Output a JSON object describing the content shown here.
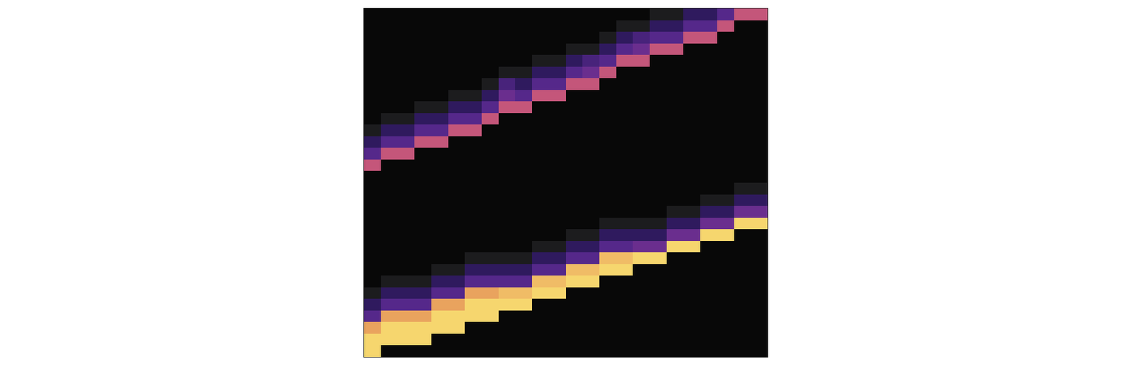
{
  "chart_data": {
    "type": "heatmap",
    "x": [
      0,
      1,
      2,
      3,
      4,
      5,
      6,
      7,
      8,
      9,
      10,
      11,
      12,
      13,
      14,
      15,
      16,
      17,
      18,
      19,
      20,
      21,
      22,
      23
    ],
    "y": [
      0,
      1,
      2,
      3,
      4,
      5,
      6,
      7,
      8,
      9,
      10,
      11,
      12,
      13,
      14,
      15,
      16,
      17,
      18,
      19,
      20,
      21,
      22,
      23,
      24,
      25,
      26,
      27,
      28,
      29
    ],
    "z": [
      [
        0,
        0,
        0,
        0,
        0,
        0,
        0,
        0,
        0,
        0,
        0,
        0,
        0,
        0,
        0,
        0,
        0,
        0.15,
        0.15,
        0.4,
        0.4,
        0.55,
        0.8,
        0.8
      ],
      [
        0,
        0,
        0,
        0,
        0,
        0,
        0,
        0,
        0,
        0,
        0,
        0,
        0,
        0,
        0,
        0.15,
        0.15,
        0.4,
        0.4,
        0.55,
        0.55,
        0.8,
        0,
        0
      ],
      [
        0,
        0,
        0,
        0,
        0,
        0,
        0,
        0,
        0,
        0,
        0,
        0,
        0,
        0,
        0.15,
        0.4,
        0.5,
        0.55,
        0.55,
        0.8,
        0.8,
        0,
        0,
        0
      ],
      [
        0,
        0,
        0,
        0,
        0,
        0,
        0,
        0,
        0,
        0,
        0,
        0,
        0.15,
        0.15,
        0.4,
        0.55,
        0.6,
        0.8,
        0.8,
        0,
        0,
        0,
        0,
        0
      ],
      [
        0,
        0,
        0,
        0,
        0,
        0,
        0,
        0,
        0,
        0,
        0.15,
        0.15,
        0.4,
        0.5,
        0.55,
        0.8,
        0.8,
        0,
        0,
        0,
        0,
        0,
        0,
        0
      ],
      [
        0,
        0,
        0,
        0,
        0,
        0,
        0,
        0,
        0.15,
        0.15,
        0.4,
        0.4,
        0.55,
        0.6,
        0.8,
        0,
        0,
        0,
        0,
        0,
        0,
        0,
        0,
        0
      ],
      [
        0,
        0,
        0,
        0,
        0,
        0,
        0,
        0.15,
        0.5,
        0.4,
        0.55,
        0.55,
        0.8,
        0.8,
        0,
        0,
        0,
        0,
        0,
        0,
        0,
        0,
        0,
        0
      ],
      [
        0,
        0,
        0,
        0,
        0,
        0.15,
        0.15,
        0.4,
        0.6,
        0.55,
        0.8,
        0.8,
        0,
        0,
        0,
        0,
        0,
        0,
        0,
        0,
        0,
        0,
        0,
        0
      ],
      [
        0,
        0,
        0,
        0.15,
        0.15,
        0.4,
        0.4,
        0.55,
        0.8,
        0.8,
        0,
        0,
        0,
        0,
        0,
        0,
        0,
        0,
        0,
        0,
        0,
        0,
        0,
        0
      ],
      [
        0,
        0.15,
        0.15,
        0.4,
        0.4,
        0.55,
        0.55,
        0.8,
        0,
        0,
        0,
        0,
        0,
        0,
        0,
        0,
        0,
        0,
        0,
        0,
        0,
        0,
        0,
        0
      ],
      [
        0.15,
        0.4,
        0.4,
        0.55,
        0.55,
        0.8,
        0.8,
        0,
        0,
        0,
        0,
        0,
        0,
        0,
        0,
        0,
        0,
        0,
        0,
        0,
        0,
        0,
        0,
        0
      ],
      [
        0.4,
        0.55,
        0.55,
        0.8,
        0.8,
        0,
        0,
        0,
        0,
        0,
        0,
        0,
        0,
        0,
        0,
        0,
        0,
        0,
        0,
        0,
        0,
        0,
        0,
        0
      ],
      [
        0.55,
        0.8,
        0.8,
        0,
        0,
        0,
        0,
        0,
        0,
        0,
        0,
        0,
        0,
        0,
        0,
        0,
        0,
        0,
        0,
        0,
        0,
        0,
        0,
        0
      ],
      [
        0.8,
        0,
        0,
        0,
        0,
        0,
        0,
        0,
        0,
        0,
        0,
        0,
        0,
        0,
        0,
        0,
        0,
        0,
        0,
        0,
        0,
        0,
        0,
        0
      ],
      [
        0,
        0,
        0,
        0,
        0,
        0,
        0,
        0,
        0,
        0,
        0,
        0,
        0,
        0,
        0,
        0,
        0,
        0,
        0,
        0,
        0,
        0,
        0,
        0
      ],
      [
        0,
        0,
        0,
        0,
        0,
        0,
        0,
        0,
        0,
        0,
        0,
        0,
        0,
        0,
        0,
        0,
        0,
        0,
        0,
        0,
        0,
        0,
        0.15,
        0.15
      ],
      [
        0,
        0,
        0,
        0,
        0,
        0,
        0,
        0,
        0,
        0,
        0,
        0,
        0,
        0,
        0,
        0,
        0,
        0,
        0,
        0,
        0.15,
        0.15,
        0.4,
        0.4
      ],
      [
        0,
        0,
        0,
        0,
        0,
        0,
        0,
        0,
        0,
        0,
        0,
        0,
        0,
        0,
        0,
        0,
        0,
        0,
        0.15,
        0.15,
        0.4,
        0.4,
        0.6,
        0.6
      ],
      [
        0,
        0,
        0,
        0,
        0,
        0,
        0,
        0,
        0,
        0,
        0,
        0,
        0,
        0,
        0.15,
        0.15,
        0.15,
        0.15,
        0.4,
        0.4,
        0.6,
        0.6,
        1,
        1
      ],
      [
        0,
        0,
        0,
        0,
        0,
        0,
        0,
        0,
        0,
        0,
        0,
        0,
        0.15,
        0.15,
        0.4,
        0.4,
        0.4,
        0.4,
        0.6,
        0.6,
        1,
        1,
        0,
        0
      ],
      [
        0,
        0,
        0,
        0,
        0,
        0,
        0,
        0,
        0,
        0,
        0.15,
        0.15,
        0.4,
        0.4,
        0.55,
        0.55,
        0.6,
        0.6,
        1,
        1,
        0,
        0,
        0,
        0
      ],
      [
        0,
        0,
        0,
        0,
        0,
        0,
        0.15,
        0.15,
        0.15,
        0.15,
        0.4,
        0.4,
        0.55,
        0.55,
        0.95,
        0.95,
        1,
        1,
        0,
        0,
        0,
        0,
        0,
        0
      ],
      [
        0,
        0,
        0,
        0,
        0.15,
        0.15,
        0.4,
        0.4,
        0.4,
        0.4,
        0.55,
        0.55,
        0.95,
        0.95,
        1,
        1,
        0,
        0,
        0,
        0,
        0,
        0,
        0,
        0
      ],
      [
        0,
        0.15,
        0.15,
        0.15,
        0.4,
        0.4,
        0.55,
        0.55,
        0.55,
        0.55,
        0.95,
        0.95,
        1,
        1,
        0,
        0,
        0,
        0,
        0,
        0,
        0,
        0,
        0,
        0
      ],
      [
        0.15,
        0.4,
        0.4,
        0.4,
        0.55,
        0.55,
        0.9,
        0.9,
        0.95,
        0.95,
        1,
        1,
        0,
        0,
        0,
        0,
        0,
        0,
        0,
        0,
        0,
        0,
        0,
        0
      ],
      [
        0.4,
        0.55,
        0.55,
        0.55,
        0.9,
        0.9,
        1,
        1,
        1,
        1,
        0,
        0,
        0,
        0,
        0,
        0,
        0,
        0,
        0,
        0,
        0,
        0,
        0,
        0
      ],
      [
        0.55,
        0.9,
        0.9,
        0.9,
        1,
        1,
        1,
        1,
        0,
        0,
        0,
        0,
        0,
        0,
        0,
        0,
        0,
        0,
        0,
        0,
        0,
        0,
        0,
        0
      ],
      [
        0.9,
        1,
        1,
        1,
        1,
        1,
        0,
        0,
        0,
        0,
        0,
        0,
        0,
        0,
        0,
        0,
        0,
        0,
        0,
        0,
        0,
        0,
        0,
        0
      ],
      [
        1,
        1,
        1,
        1,
        0,
        0,
        0,
        0,
        0,
        0,
        0,
        0,
        0,
        0,
        0,
        0,
        0,
        0,
        0,
        0,
        0,
        0,
        0,
        0
      ],
      [
        1,
        0,
        0,
        0,
        0,
        0,
        0,
        0,
        0,
        0,
        0,
        0,
        0,
        0,
        0,
        0,
        0,
        0,
        0,
        0,
        0,
        0,
        0,
        0
      ]
    ],
    "xlim": [
      -0.5,
      23.5
    ],
    "ylim": [
      29.5,
      -0.5
    ],
    "zlim": [
      0,
      1
    ],
    "tick_labels": false
  }
}
